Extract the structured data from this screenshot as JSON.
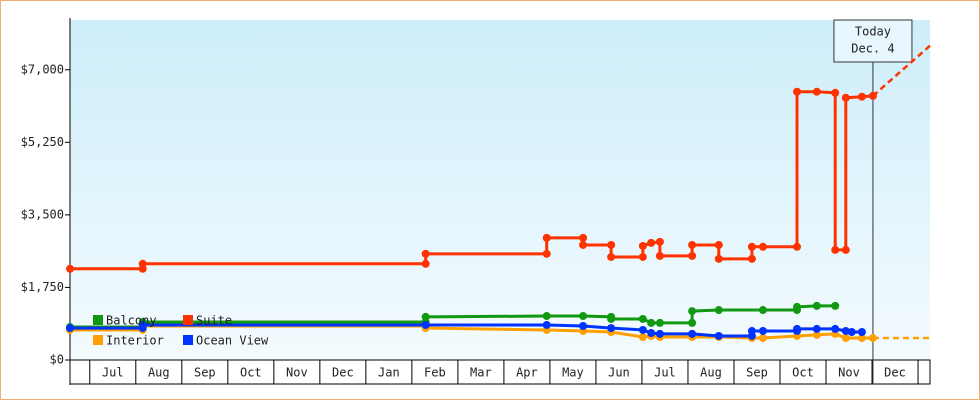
{
  "chart_data": {
    "type": "line",
    "categories": [
      "Jul",
      "Aug",
      "Sep",
      "Oct",
      "Nov",
      "Dec",
      "Jan",
      "Feb",
      "Mar",
      "Apr",
      "May",
      "Jun",
      "Jul",
      "Aug",
      "Sep",
      "Oct",
      "Nov",
      "Dec"
    ],
    "xlim": [
      -0.43,
      18.26
    ],
    "ylim": [
      0,
      8200
    ],
    "yticks": [
      {
        "value": 0,
        "label": "$0"
      },
      {
        "value": 1750,
        "label": "$1,750"
      },
      {
        "value": 3500,
        "label": "$3,500"
      },
      {
        "value": 5250,
        "label": "$5,250"
      },
      {
        "value": 7000,
        "label": "$7,000"
      }
    ],
    "series": [
      {
        "name": "Balcony",
        "color": "#119911",
        "x": [
          -0.43,
          1.15,
          1.15,
          7.3,
          7.3,
          9.93,
          10.72,
          11.33,
          11.33,
          12.02,
          12.2,
          12.39,
          13.09,
          13.09,
          13.67,
          14.63,
          15.37,
          15.37,
          15.8,
          16.2
        ],
        "values": [
          795,
          795,
          915,
          915,
          1040,
          1060,
          1060,
          1040,
          990,
          990,
          895,
          895,
          895,
          1180,
          1205,
          1205,
          1205,
          1280,
          1305,
          1305
        ]
      },
      {
        "name": "Suite",
        "color": "#ff3300",
        "x": [
          -0.43,
          1.15,
          1.15,
          7.3,
          7.3,
          9.93,
          9.93,
          10.72,
          10.72,
          11.33,
          11.33,
          12.02,
          12.02,
          12.2,
          12.39,
          12.39,
          13.09,
          13.09,
          13.67,
          13.67,
          14.39,
          14.39,
          14.63,
          15.37,
          15.37,
          15.8,
          16.2,
          16.2,
          16.43,
          16.43,
          16.78,
          17.02
        ],
        "values": [
          2200,
          2200,
          2320,
          2320,
          2560,
          2560,
          2945,
          2945,
          2775,
          2775,
          2485,
          2485,
          2750,
          2825,
          2850,
          2510,
          2510,
          2775,
          2775,
          2440,
          2440,
          2730,
          2730,
          2730,
          6470,
          6470,
          6445,
          2655,
          2655,
          6325,
          6350,
          6370
        ],
        "forecast_x": [
          17.02,
          18.26
        ],
        "forecast_values": [
          6370,
          7580
        ]
      },
      {
        "name": "Interior",
        "color": "#ffa000",
        "x": [
          -0.43,
          1.15,
          1.15,
          7.3,
          7.3,
          9.93,
          10.72,
          11.33,
          12.02,
          12.2,
          12.39,
          13.09,
          13.67,
          14.39,
          14.63,
          15.37,
          15.8,
          16.2,
          16.43,
          16.78,
          17.02
        ],
        "values": [
          725,
          725,
          820,
          820,
          770,
          725,
          700,
          675,
          555,
          580,
          555,
          555,
          555,
          530,
          530,
          580,
          605,
          630,
          530,
          530,
          530
        ],
        "forecast_x": [
          17.02,
          18.26
        ],
        "forecast_values": [
          530,
          530
        ]
      },
      {
        "name": "Ocean View",
        "color": "#0033ff",
        "x": [
          -0.43,
          1.15,
          1.15,
          7.3,
          9.93,
          10.72,
          11.33,
          12.02,
          12.2,
          12.39,
          13.09,
          13.67,
          14.39,
          14.39,
          14.63,
          15.37,
          15.37,
          15.8,
          16.2,
          16.43,
          16.56,
          16.78
        ],
        "values": [
          770,
          770,
          845,
          845,
          845,
          820,
          770,
          725,
          650,
          630,
          630,
          580,
          580,
          700,
          700,
          700,
          750,
          750,
          750,
          700,
          675,
          675
        ]
      }
    ],
    "annotation": {
      "lines": [
        "Today",
        "Dec. 4"
      ],
      "x": 17.02
    }
  }
}
